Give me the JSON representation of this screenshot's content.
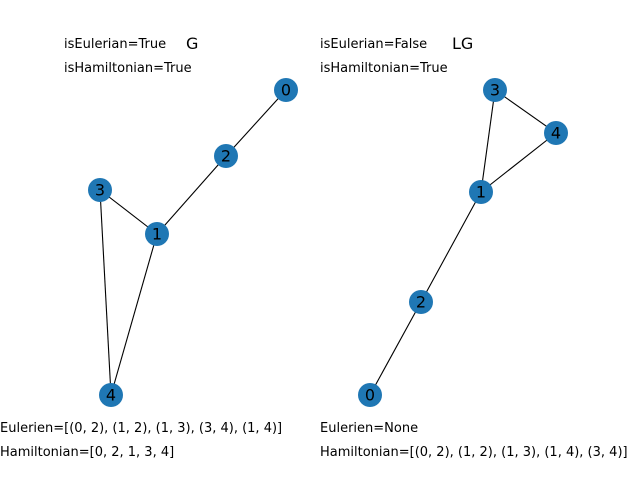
{
  "graph_g": {
    "title": "G",
    "is_eulerian": "isEulerian=True",
    "is_hamiltonian": "isHamiltonian=True",
    "eulerien": "Eulerien=[(0, 2), (1, 2), (1, 3), (3, 4), (1, 4)]",
    "hamiltonian": "Hamiltonian=[0, 2, 1, 3, 4]",
    "node_color": "#1f77b4",
    "nodes": [
      {
        "id": "0",
        "label": "0"
      },
      {
        "id": "1",
        "label": "1"
      },
      {
        "id": "2",
        "label": "2"
      },
      {
        "id": "3",
        "label": "3"
      },
      {
        "id": "4",
        "label": "4"
      }
    ],
    "edges": [
      [
        "0",
        "2"
      ],
      [
        "1",
        "2"
      ],
      [
        "1",
        "3"
      ],
      [
        "3",
        "4"
      ],
      [
        "1",
        "4"
      ]
    ]
  },
  "graph_lg": {
    "title": "LG",
    "is_eulerian": "isEulerian=False",
    "is_hamiltonian": "isHamiltonian=True",
    "eulerien": "Eulerien=None",
    "hamiltonian": "Hamiltonian=[(0, 2), (1, 2), (1, 3), (1, 4), (3, 4)]",
    "node_color": "#1f77b4",
    "nodes": [
      {
        "id": "0",
        "label": "0"
      },
      {
        "id": "1",
        "label": "1"
      },
      {
        "id": "2",
        "label": "2"
      },
      {
        "id": "3",
        "label": "3"
      },
      {
        "id": "4",
        "label": "4"
      }
    ],
    "edges": [
      [
        "0",
        "2"
      ],
      [
        "1",
        "2"
      ],
      [
        "1",
        "3"
      ],
      [
        "1",
        "4"
      ],
      [
        "3",
        "4"
      ]
    ]
  }
}
